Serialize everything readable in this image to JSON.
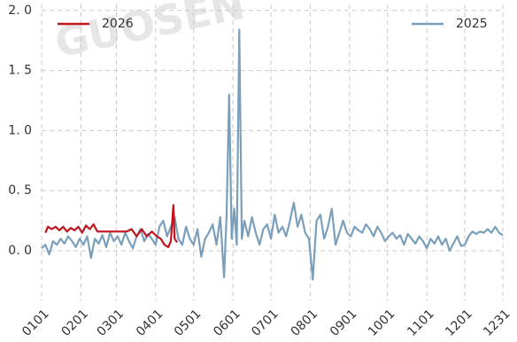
{
  "chart_data": {
    "type": "line",
    "watermark": "GUOSEN",
    "xlim": [
      1,
      365
    ],
    "xticks": [
      {
        "value": 1,
        "label": "0101"
      },
      {
        "value": 32,
        "label": "0201"
      },
      {
        "value": 60,
        "label": "0301"
      },
      {
        "value": 91,
        "label": "0401"
      },
      {
        "value": 121,
        "label": "0501"
      },
      {
        "value": 152,
        "label": "0601"
      },
      {
        "value": 182,
        "label": "0701"
      },
      {
        "value": 213,
        "label": "0801"
      },
      {
        "value": 244,
        "label": "0901"
      },
      {
        "value": 274,
        "label": "1001"
      },
      {
        "value": 305,
        "label": "1101"
      },
      {
        "value": 335,
        "label": "1201"
      },
      {
        "value": 365,
        "label": "1231"
      }
    ],
    "ylim": [
      -0.42,
      2.05
    ],
    "yticks": [
      {
        "value": 0,
        "label": "0. 0"
      },
      {
        "value": 0.5,
        "label": "0. 5"
      },
      {
        "value": 1,
        "label": "1. 0"
      },
      {
        "value": 1.5,
        "label": "1. 5"
      },
      {
        "value": 2,
        "label": "2. 0"
      }
    ],
    "grid": true,
    "series": [
      {
        "name": "2026",
        "color": "#c0141e",
        "legend": "upper left",
        "x": [
          4,
          6,
          9,
          12,
          15,
          18,
          21,
          24,
          27,
          30,
          33,
          36,
          39,
          42,
          45,
          48,
          52,
          56,
          60,
          64,
          68,
          72,
          76,
          80,
          84,
          88,
          92,
          95,
          98,
          101,
          103,
          105,
          106,
          108
        ],
        "values": [
          0.15,
          0.2,
          0.18,
          0.2,
          0.17,
          0.2,
          0.16,
          0.19,
          0.17,
          0.2,
          0.15,
          0.21,
          0.18,
          0.22,
          0.16,
          0.16,
          0.16,
          0.16,
          0.16,
          0.16,
          0.16,
          0.18,
          0.12,
          0.18,
          0.12,
          0.16,
          0.12,
          0.1,
          0.05,
          0.03,
          0.08,
          0.38,
          0.1,
          0.07
        ]
      },
      {
        "name": "2025",
        "color": "#7a9fba",
        "legend": "upper right",
        "x": [
          1,
          4,
          7,
          10,
          13,
          16,
          19,
          22,
          25,
          28,
          31,
          34,
          37,
          40,
          43,
          46,
          49,
          52,
          55,
          58,
          61,
          64,
          67,
          70,
          73,
          76,
          79,
          82,
          85,
          88,
          91,
          94,
          97,
          100,
          103,
          106,
          109,
          112,
          115,
          118,
          121,
          124,
          127,
          130,
          133,
          136,
          139,
          142,
          145,
          147,
          149,
          151,
          153,
          155,
          157,
          159,
          161,
          164,
          167,
          170,
          173,
          176,
          179,
          182,
          185,
          188,
          191,
          194,
          197,
          200,
          203,
          206,
          209,
          212,
          215,
          218,
          221,
          224,
          227,
          230,
          233,
          236,
          239,
          242,
          245,
          248,
          251,
          254,
          257,
          260,
          263,
          266,
          269,
          272,
          275,
          278,
          281,
          284,
          287,
          290,
          293,
          296,
          299,
          302,
          305,
          308,
          311,
          314,
          317,
          320,
          323,
          326,
          329,
          332,
          335,
          338,
          341,
          344,
          347,
          350,
          353,
          356,
          359,
          362,
          365
        ],
        "values": [
          0.02,
          0.05,
          -0.03,
          0.08,
          0.05,
          0.1,
          0.06,
          0.12,
          0.08,
          0.03,
          0.1,
          0.05,
          0.12,
          -0.06,
          0.1,
          0.06,
          0.13,
          0.03,
          0.15,
          0.08,
          0.12,
          0.05,
          0.15,
          0.08,
          0.02,
          0.12,
          0.18,
          0.08,
          0.14,
          0.1,
          0.05,
          0.2,
          0.25,
          0.12,
          0.2,
          0.28,
          0.1,
          0.05,
          0.2,
          0.1,
          0.05,
          0.18,
          -0.05,
          0.1,
          0.15,
          0.22,
          0.05,
          0.28,
          -0.22,
          0.3,
          1.3,
          0.1,
          0.35,
          0.05,
          1.84,
          0.1,
          0.25,
          0.12,
          0.28,
          0.15,
          0.05,
          0.18,
          0.22,
          0.1,
          0.3,
          0.15,
          0.2,
          0.12,
          0.25,
          0.4,
          0.2,
          0.3,
          0.15,
          0.1,
          -0.24,
          0.25,
          0.3,
          0.1,
          0.2,
          0.35,
          0.05,
          0.15,
          0.25,
          0.15,
          0.12,
          0.2,
          0.17,
          0.15,
          0.22,
          0.18,
          0.12,
          0.2,
          0.15,
          0.08,
          0.12,
          0.15,
          0.1,
          0.13,
          0.05,
          0.14,
          0.1,
          0.06,
          0.12,
          0.08,
          0.02,
          0.1,
          0.06,
          0.12,
          0.05,
          0.1,
          0.0,
          0.06,
          0.12,
          0.04,
          0.05,
          0.12,
          0.16,
          0.14,
          0.16,
          0.15,
          0.18,
          0.15,
          0.2,
          0.15,
          0.13
        ]
      }
    ]
  }
}
